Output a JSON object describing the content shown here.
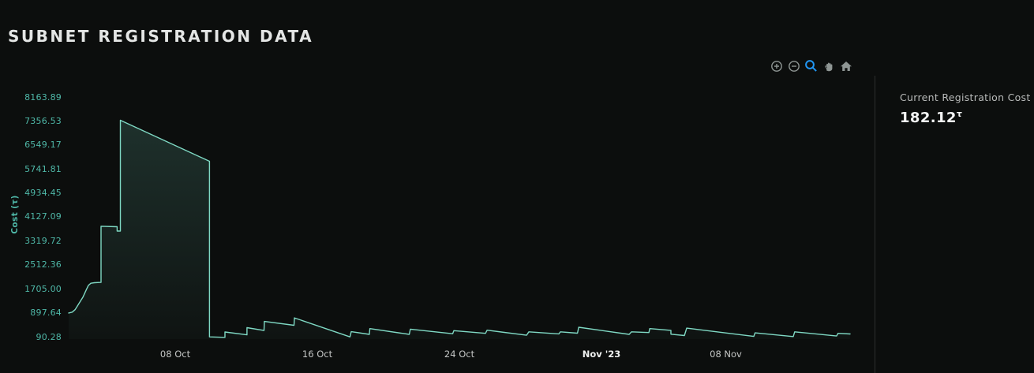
{
  "page": {
    "title": "SUBNET REGISTRATION DATA"
  },
  "toolbar": {
    "icons": [
      "zoom-in",
      "zoom-out",
      "box-zoom",
      "pan",
      "reset-home"
    ],
    "active_icon": "box-zoom",
    "active_color": "#2196f3",
    "idle_color": "#8f9694"
  },
  "panel": {
    "label": "Current Registration Cost",
    "value": "182.12",
    "unit": "τ"
  },
  "colors": {
    "background": "#0c0e0d",
    "line": "#7fd9c4",
    "area_fill": "#6fcbb6",
    "axis_teal": "#4fb8a8",
    "x_tick_text": "#c4c6c5",
    "separator": "#2c2f2e",
    "title_text": "#e4e6e5"
  },
  "chart_data": {
    "type": "area",
    "title": "SUBNET REGISTRATION DATA",
    "xlabel": "",
    "ylabel": "Cost (τ)",
    "grid": false,
    "legend": false,
    "x_axis": {
      "unit": "days since start",
      "start_date": "2023-10-02",
      "ticks": [
        {
          "label": "08 Oct",
          "day": 6,
          "emphasis": false
        },
        {
          "label": "16 Oct",
          "day": 14,
          "emphasis": false
        },
        {
          "label": "24 Oct",
          "day": 22,
          "emphasis": false
        },
        {
          "label": "Nov '23",
          "day": 30,
          "emphasis": true
        },
        {
          "label": "08 Nov",
          "day": 37,
          "emphasis": false
        }
      ],
      "range_days": [
        0,
        45.5
      ]
    },
    "y_axis": {
      "min": 90.28,
      "max": 8163.89,
      "tick_labels": [
        "8163.89",
        "7356.53",
        "6549.17",
        "5741.81",
        "4934.45",
        "4127.09",
        "3319.72",
        "2512.36",
        "1705.00",
        "897.64",
        "90.28"
      ]
    },
    "series": [
      {
        "name": "Registration Cost",
        "color": "#7fd9c4",
        "points": [
          [
            0.0,
            890
          ],
          [
            0.2,
            920
          ],
          [
            0.36,
            1000
          ],
          [
            0.6,
            1230
          ],
          [
            0.8,
            1420
          ],
          [
            1.0,
            1680
          ],
          [
            1.11,
            1820
          ],
          [
            1.25,
            1890
          ],
          [
            1.45,
            1910
          ],
          [
            1.82,
            1920
          ],
          [
            1.82,
            3810
          ],
          [
            2.73,
            3795
          ],
          [
            2.73,
            3650
          ],
          [
            2.91,
            3650
          ],
          [
            2.91,
            7380
          ],
          [
            7.93,
            6000
          ],
          [
            7.93,
            85
          ],
          [
            8.8,
            70
          ],
          [
            8.8,
            250
          ],
          [
            10.04,
            155
          ],
          [
            10.04,
            395
          ],
          [
            11.0,
            300
          ],
          [
            11.02,
            605
          ],
          [
            12.69,
            475
          ],
          [
            12.71,
            725
          ],
          [
            15.84,
            85
          ],
          [
            15.91,
            260
          ],
          [
            16.93,
            170
          ],
          [
            16.96,
            365
          ],
          [
            19.18,
            170
          ],
          [
            19.24,
            345
          ],
          [
            21.62,
            190
          ],
          [
            21.69,
            295
          ],
          [
            23.47,
            205
          ],
          [
            23.56,
            310
          ],
          [
            25.78,
            140
          ],
          [
            25.91,
            255
          ],
          [
            27.6,
            185
          ],
          [
            27.69,
            255
          ],
          [
            28.65,
            210
          ],
          [
            28.72,
            410
          ],
          [
            31.56,
            170
          ],
          [
            31.69,
            255
          ],
          [
            32.67,
            230
          ],
          [
            32.72,
            365
          ],
          [
            33.91,
            305
          ],
          [
            33.91,
            175
          ],
          [
            34.67,
            130
          ],
          [
            34.8,
            380
          ],
          [
            38.58,
            100
          ],
          [
            38.65,
            220
          ],
          [
            40.8,
            95
          ],
          [
            40.88,
            255
          ],
          [
            43.24,
            115
          ],
          [
            43.32,
            205
          ],
          [
            44.0,
            182.12
          ]
        ]
      }
    ],
    "current_value": 182.12
  }
}
